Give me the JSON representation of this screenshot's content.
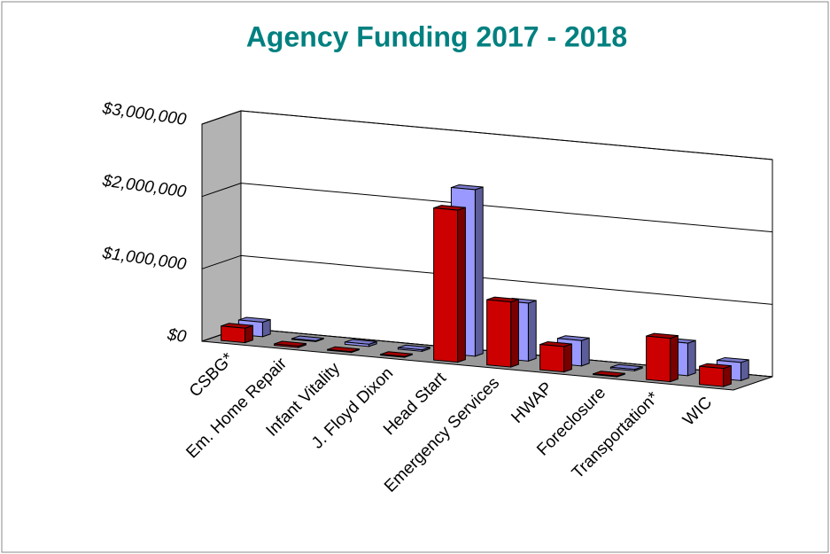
{
  "chart_data": {
    "type": "bar3d",
    "title": "Agency Funding 2017 - 2018",
    "categories": [
      "CSBG*",
      "Em. Home Repair",
      "Infant Vitality",
      "J. Floyd Dixon",
      "Head Start",
      "Emergency Services",
      "HWAP",
      "Foreclosure",
      "Transportation*",
      "WIC"
    ],
    "series": [
      {
        "color": "#cc0000",
        "values": [
          200000,
          20000,
          10000,
          10000,
          2100000,
          900000,
          350000,
          10000,
          600000,
          250000
        ]
      },
      {
        "color": "#9999ff",
        "values": [
          200000,
          10000,
          30000,
          20000,
          2300000,
          800000,
          350000,
          20000,
          450000,
          250000
        ]
      }
    ],
    "ylim": [
      0,
      3000000
    ],
    "yticks": [
      {
        "value": 0,
        "label": "$0"
      },
      {
        "value": 1000000,
        "label": "$1,000,000"
      },
      {
        "value": 2000000,
        "label": "$2,000,000"
      },
      {
        "value": 3000000,
        "label": "$3,000,000"
      }
    ],
    "grid": true
  }
}
